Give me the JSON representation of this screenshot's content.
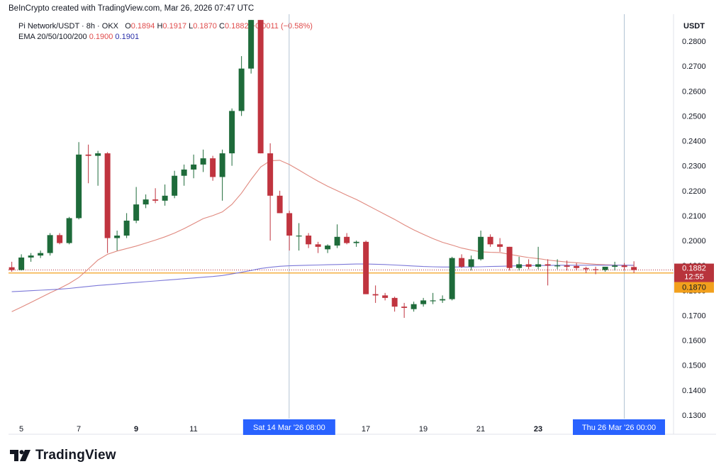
{
  "header": {
    "credit": "BeInCrypto created with TradingView.com, Mar 26, 2026 07:47 UTC",
    "symbol": "Pi Network/USDT · 8h · OKX",
    "ohlc": {
      "o_label": "O",
      "o": "0.1894",
      "h_label": "H",
      "h": "0.1917",
      "l_label": "L",
      "l": "0.1870",
      "c_label": "C",
      "c": "0.1882",
      "change": "−0.0011 (−0.58%)"
    },
    "ema_label": "EMA 20/50/100/200",
    "ema_values": [
      "0.1900",
      "0.1901"
    ]
  },
  "logo": {
    "text": "TradingView"
  },
  "colors": {
    "up": "#1e6b3a",
    "down": "#c0343f",
    "ema_short": "#e0897f",
    "ema_long": "#7c78d8",
    "price_label": "#b8343c",
    "low_label": "#f2a01d",
    "crosshair_label": "#2962ff"
  },
  "chart_data": {
    "type": "candlestick",
    "y_axis_unit": "USDT",
    "ylim": [
      0.125,
      0.2885
    ],
    "y_ticks": [
      0.13,
      0.14,
      0.15,
      0.16,
      0.17,
      0.18,
      0.19,
      0.2,
      0.21,
      0.22,
      0.23,
      0.24,
      0.25,
      0.26,
      0.27,
      0.28
    ],
    "y_tick_labels": [
      "0.1300",
      "0.1400",
      "0.1500",
      "0.1600",
      "0.1700",
      "0.1800",
      "0.1900",
      "0.2000",
      "0.2100",
      "0.2200",
      "0.2300",
      "0.2400",
      "0.2500",
      "0.2600",
      "0.2700",
      "0.2800"
    ],
    "x_ticks": [
      {
        "label": "5",
        "day": 5,
        "bold": false
      },
      {
        "label": "7",
        "day": 7,
        "bold": false
      },
      {
        "label": "9",
        "day": 9,
        "bold": true
      },
      {
        "label": "11",
        "day": 11,
        "bold": false
      },
      {
        "label": "17",
        "day": 17,
        "bold": false
      },
      {
        "label": "19",
        "day": 19,
        "bold": false
      },
      {
        "label": "21",
        "day": 21,
        "bold": false
      },
      {
        "label": "23",
        "day": 23,
        "bold": true
      }
    ],
    "crosshair_labels": [
      {
        "label": "Sat 14 Mar '26  08:00",
        "day": 14.33
      },
      {
        "label": "Thu 26 Mar '26  00:00",
        "day": 26.0
      }
    ],
    "last_price": {
      "value": 0.1882,
      "label": "0.1882",
      "countdown": "12:55"
    },
    "low_line": {
      "value": 0.187,
      "label": "0.1870"
    },
    "candles": [
      {
        "o": 0.1893,
        "h": 0.1915,
        "l": 0.1875,
        "c": 0.1882
      },
      {
        "o": 0.1882,
        "h": 0.1945,
        "l": 0.188,
        "c": 0.1932
      },
      {
        "o": 0.1932,
        "h": 0.195,
        "l": 0.1915,
        "c": 0.194
      },
      {
        "o": 0.194,
        "h": 0.196,
        "l": 0.193,
        "c": 0.195
      },
      {
        "o": 0.195,
        "h": 0.203,
        "l": 0.194,
        "c": 0.2022
      },
      {
        "o": 0.2022,
        "h": 0.203,
        "l": 0.1985,
        "c": 0.199
      },
      {
        "o": 0.199,
        "h": 0.2095,
        "l": 0.1985,
        "c": 0.209
      },
      {
        "o": 0.209,
        "h": 0.2395,
        "l": 0.2085,
        "c": 0.2345
      },
      {
        "o": 0.2345,
        "h": 0.2385,
        "l": 0.223,
        "c": 0.234
      },
      {
        "o": 0.234,
        "h": 0.236,
        "l": 0.222,
        "c": 0.235
      },
      {
        "o": 0.235,
        "h": 0.2355,
        "l": 0.195,
        "c": 0.201
      },
      {
        "o": 0.201,
        "h": 0.204,
        "l": 0.196,
        "c": 0.202
      },
      {
        "o": 0.202,
        "h": 0.211,
        "l": 0.201,
        "c": 0.208
      },
      {
        "o": 0.208,
        "h": 0.2215,
        "l": 0.207,
        "c": 0.2145
      },
      {
        "o": 0.2145,
        "h": 0.2185,
        "l": 0.213,
        "c": 0.2165
      },
      {
        "o": 0.2165,
        "h": 0.221,
        "l": 0.215,
        "c": 0.216
      },
      {
        "o": 0.216,
        "h": 0.2225,
        "l": 0.214,
        "c": 0.218
      },
      {
        "o": 0.218,
        "h": 0.228,
        "l": 0.217,
        "c": 0.226
      },
      {
        "o": 0.226,
        "h": 0.2305,
        "l": 0.222,
        "c": 0.2285
      },
      {
        "o": 0.2285,
        "h": 0.2345,
        "l": 0.225,
        "c": 0.2305
      },
      {
        "o": 0.2305,
        "h": 0.2365,
        "l": 0.2275,
        "c": 0.233
      },
      {
        "o": 0.233,
        "h": 0.234,
        "l": 0.224,
        "c": 0.2255
      },
      {
        "o": 0.2255,
        "h": 0.2365,
        "l": 0.216,
        "c": 0.235
      },
      {
        "o": 0.235,
        "h": 0.253,
        "l": 0.23,
        "c": 0.252
      },
      {
        "o": 0.252,
        "h": 0.274,
        "l": 0.25,
        "c": 0.269
      },
      {
        "o": 0.269,
        "h": 0.2885,
        "l": 0.267,
        "c": 0.2885
      },
      {
        "o": 0.2885,
        "h": 0.2885,
        "l": 0.235,
        "c": 0.235
      },
      {
        "o": 0.235,
        "h": 0.239,
        "l": 0.2,
        "c": 0.218
      },
      {
        "o": 0.218,
        "h": 0.22,
        "l": 0.211,
        "c": 0.211
      },
      {
        "o": 0.211,
        "h": 0.212,
        "l": 0.196,
        "c": 0.202
      },
      {
        "o": 0.202,
        "h": 0.207,
        "l": 0.196,
        "c": 0.202
      },
      {
        "o": 0.202,
        "h": 0.203,
        "l": 0.197,
        "c": 0.1985
      },
      {
        "o": 0.1985,
        "h": 0.1995,
        "l": 0.195,
        "c": 0.1975
      },
      {
        "o": 0.1965,
        "h": 0.1985,
        "l": 0.195,
        "c": 0.198
      },
      {
        "o": 0.198,
        "h": 0.2065,
        "l": 0.197,
        "c": 0.2015
      },
      {
        "o": 0.2015,
        "h": 0.203,
        "l": 0.1985,
        "c": 0.199
      },
      {
        "o": 0.199,
        "h": 0.2,
        "l": 0.1975,
        "c": 0.1995
      },
      {
        "o": 0.1995,
        "h": 0.2,
        "l": 0.1785,
        "c": 0.1785
      },
      {
        "o": 0.1785,
        "h": 0.182,
        "l": 0.175,
        "c": 0.178
      },
      {
        "o": 0.178,
        "h": 0.179,
        "l": 0.176,
        "c": 0.177
      },
      {
        "o": 0.177,
        "h": 0.1775,
        "l": 0.1715,
        "c": 0.1735
      },
      {
        "o": 0.1735,
        "h": 0.175,
        "l": 0.169,
        "c": 0.173
      },
      {
        "o": 0.1725,
        "h": 0.1755,
        "l": 0.1715,
        "c": 0.1745
      },
      {
        "o": 0.1745,
        "h": 0.177,
        "l": 0.1735,
        "c": 0.176
      },
      {
        "o": 0.176,
        "h": 0.179,
        "l": 0.1745,
        "c": 0.176
      },
      {
        "o": 0.176,
        "h": 0.178,
        "l": 0.175,
        "c": 0.1765
      },
      {
        "o": 0.1765,
        "h": 0.1935,
        "l": 0.176,
        "c": 0.193
      },
      {
        "o": 0.193,
        "h": 0.1945,
        "l": 0.189,
        "c": 0.1895
      },
      {
        "o": 0.1895,
        "h": 0.194,
        "l": 0.188,
        "c": 0.1925
      },
      {
        "o": 0.1925,
        "h": 0.204,
        "l": 0.192,
        "c": 0.2015
      },
      {
        "o": 0.2015,
        "h": 0.2025,
        "l": 0.1975,
        "c": 0.1985
      },
      {
        "o": 0.1985,
        "h": 0.201,
        "l": 0.1955,
        "c": 0.1975
      },
      {
        "o": 0.1975,
        "h": 0.1975,
        "l": 0.188,
        "c": 0.189
      },
      {
        "o": 0.189,
        "h": 0.1935,
        "l": 0.188,
        "c": 0.1905
      },
      {
        "o": 0.1905,
        "h": 0.1925,
        "l": 0.1885,
        "c": 0.1895
      },
      {
        "o": 0.1895,
        "h": 0.1975,
        "l": 0.1885,
        "c": 0.1905
      },
      {
        "o": 0.1905,
        "h": 0.1925,
        "l": 0.182,
        "c": 0.19
      },
      {
        "o": 0.19,
        "h": 0.1925,
        "l": 0.1885,
        "c": 0.19
      },
      {
        "o": 0.19,
        "h": 0.192,
        "l": 0.188,
        "c": 0.1895
      },
      {
        "o": 0.1898,
        "h": 0.191,
        "l": 0.188,
        "c": 0.189
      },
      {
        "o": 0.189,
        "h": 0.1895,
        "l": 0.187,
        "c": 0.1885
      },
      {
        "o": 0.1885,
        "h": 0.1895,
        "l": 0.1865,
        "c": 0.1882
      },
      {
        "o": 0.1882,
        "h": 0.1895,
        "l": 0.1875,
        "c": 0.1895
      },
      {
        "o": 0.1895,
        "h": 0.1915,
        "l": 0.188,
        "c": 0.19
      },
      {
        "o": 0.19,
        "h": 0.191,
        "l": 0.188,
        "c": 0.1894
      },
      {
        "o": 0.1894,
        "h": 0.1917,
        "l": 0.187,
        "c": 0.1882
      }
    ],
    "ema_short": [
      0.1715,
      0.1733,
      0.1752,
      0.1771,
      0.179,
      0.1808,
      0.1828,
      0.1852,
      0.1886,
      0.1922,
      0.1945,
      0.1958,
      0.1968,
      0.1978,
      0.199,
      0.2002,
      0.2015,
      0.203,
      0.2048,
      0.2068,
      0.2088,
      0.21,
      0.2115,
      0.2145,
      0.219,
      0.2245,
      0.2295,
      0.232,
      0.2322,
      0.2305,
      0.2283,
      0.226,
      0.2238,
      0.2218,
      0.22,
      0.2182,
      0.2165,
      0.2145,
      0.2125,
      0.2105,
      0.2085,
      0.2063,
      0.2043,
      0.2025,
      0.2008,
      0.1993,
      0.1982,
      0.197,
      0.1962,
      0.1955,
      0.1953,
      0.1952,
      0.1945,
      0.1938,
      0.1932,
      0.1928,
      0.1922,
      0.1918,
      0.1914,
      0.1911,
      0.1908,
      0.1905,
      0.1903,
      0.1902,
      0.1901,
      0.19
    ],
    "ema_long": [
      0.1795,
      0.1797,
      0.1799,
      0.1801,
      0.1803,
      0.1805,
      0.1808,
      0.1812,
      0.1816,
      0.182,
      0.1823,
      0.1826,
      0.1829,
      0.1832,
      0.1835,
      0.1838,
      0.1841,
      0.1844,
      0.1847,
      0.185,
      0.1853,
      0.1856,
      0.186,
      0.1866,
      0.1873,
      0.188,
      0.1888,
      0.1893,
      0.1897,
      0.1899,
      0.19,
      0.1901,
      0.1902,
      0.1903,
      0.1904,
      0.1905,
      0.1906,
      0.1906,
      0.1905,
      0.1904,
      0.1902,
      0.19,
      0.1898,
      0.1896,
      0.1895,
      0.1894,
      0.1894,
      0.1894,
      0.1894,
      0.1895,
      0.1896,
      0.1897,
      0.1898,
      0.1899,
      0.19,
      0.19,
      0.19,
      0.1901,
      0.1901,
      0.1901,
      0.1901,
      0.1901,
      0.1901,
      0.1901,
      0.1901,
      0.1901
    ],
    "first_candle_day": 4.67
  }
}
